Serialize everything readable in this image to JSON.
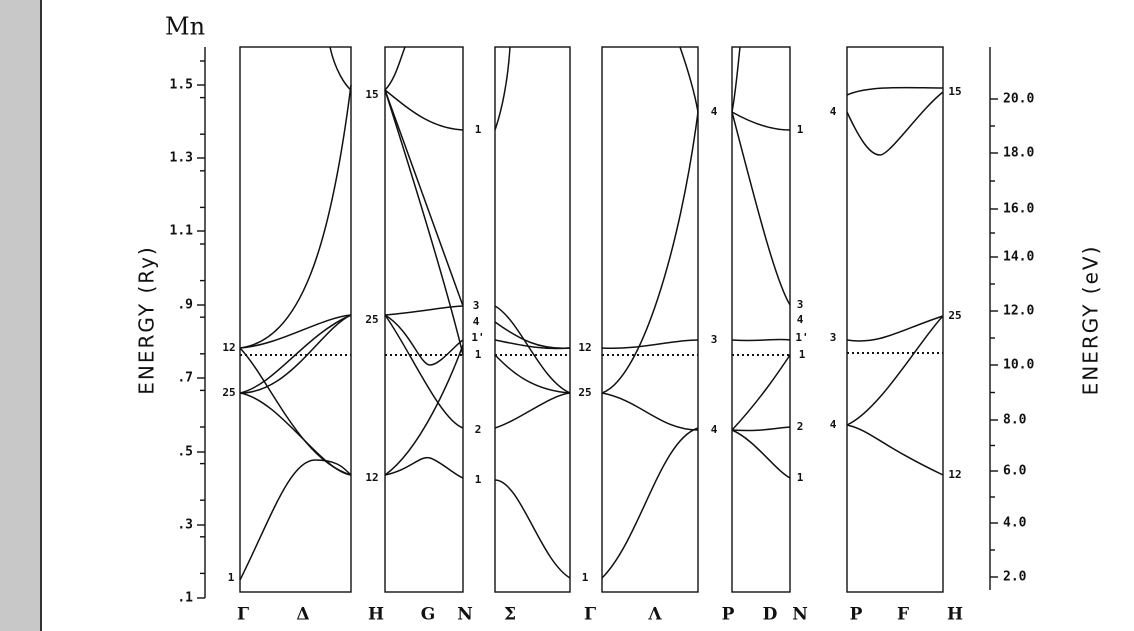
{
  "title": "Mn",
  "y_axis_left": {
    "label": "ENERGY  (Ry)",
    "ticks": [
      ".1",
      ".3",
      ".5",
      ".7",
      ".9",
      "1.1",
      "1.3",
      "1.5"
    ]
  },
  "y_axis_right": {
    "label": "ENERGY  (eV)",
    "ticks": [
      "2.0",
      "4.0",
      "6.0",
      "8.0",
      "10.0",
      "12.0",
      "14.0",
      "16.0",
      "18.0",
      "20.0"
    ]
  },
  "k_points": [
    "Γ",
    "Δ",
    "H",
    "G",
    "N",
    "Σ",
    "Γ",
    "Λ",
    "P",
    "D",
    "N",
    "P",
    "F",
    "H"
  ],
  "band_labels": [
    "1",
    "25",
    "12",
    "15",
    "25",
    "12",
    "1",
    "3",
    "4",
    "1'",
    "1",
    "2",
    "1",
    "1",
    "25",
    "12",
    "4",
    "3",
    "4",
    "1",
    "3",
    "4",
    "1'",
    "1",
    "2",
    "1",
    "4",
    "3",
    "4",
    "15",
    "25",
    "12"
  ]
}
